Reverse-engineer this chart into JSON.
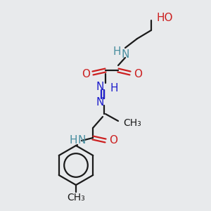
{
  "bg": "#e8eaec",
  "bond_color": "#1a1a1a",
  "bond_lw": 1.6,
  "figsize": [
    3.0,
    3.0
  ],
  "dpi": 100,
  "xlim": [
    0,
    300
  ],
  "ylim": [
    0,
    300
  ],
  "colors": {
    "C": "#1a1a1a",
    "N": "#2020cc",
    "O": "#cc2020",
    "NH": "#4a8fa0",
    "H": "#4a8fa0"
  }
}
